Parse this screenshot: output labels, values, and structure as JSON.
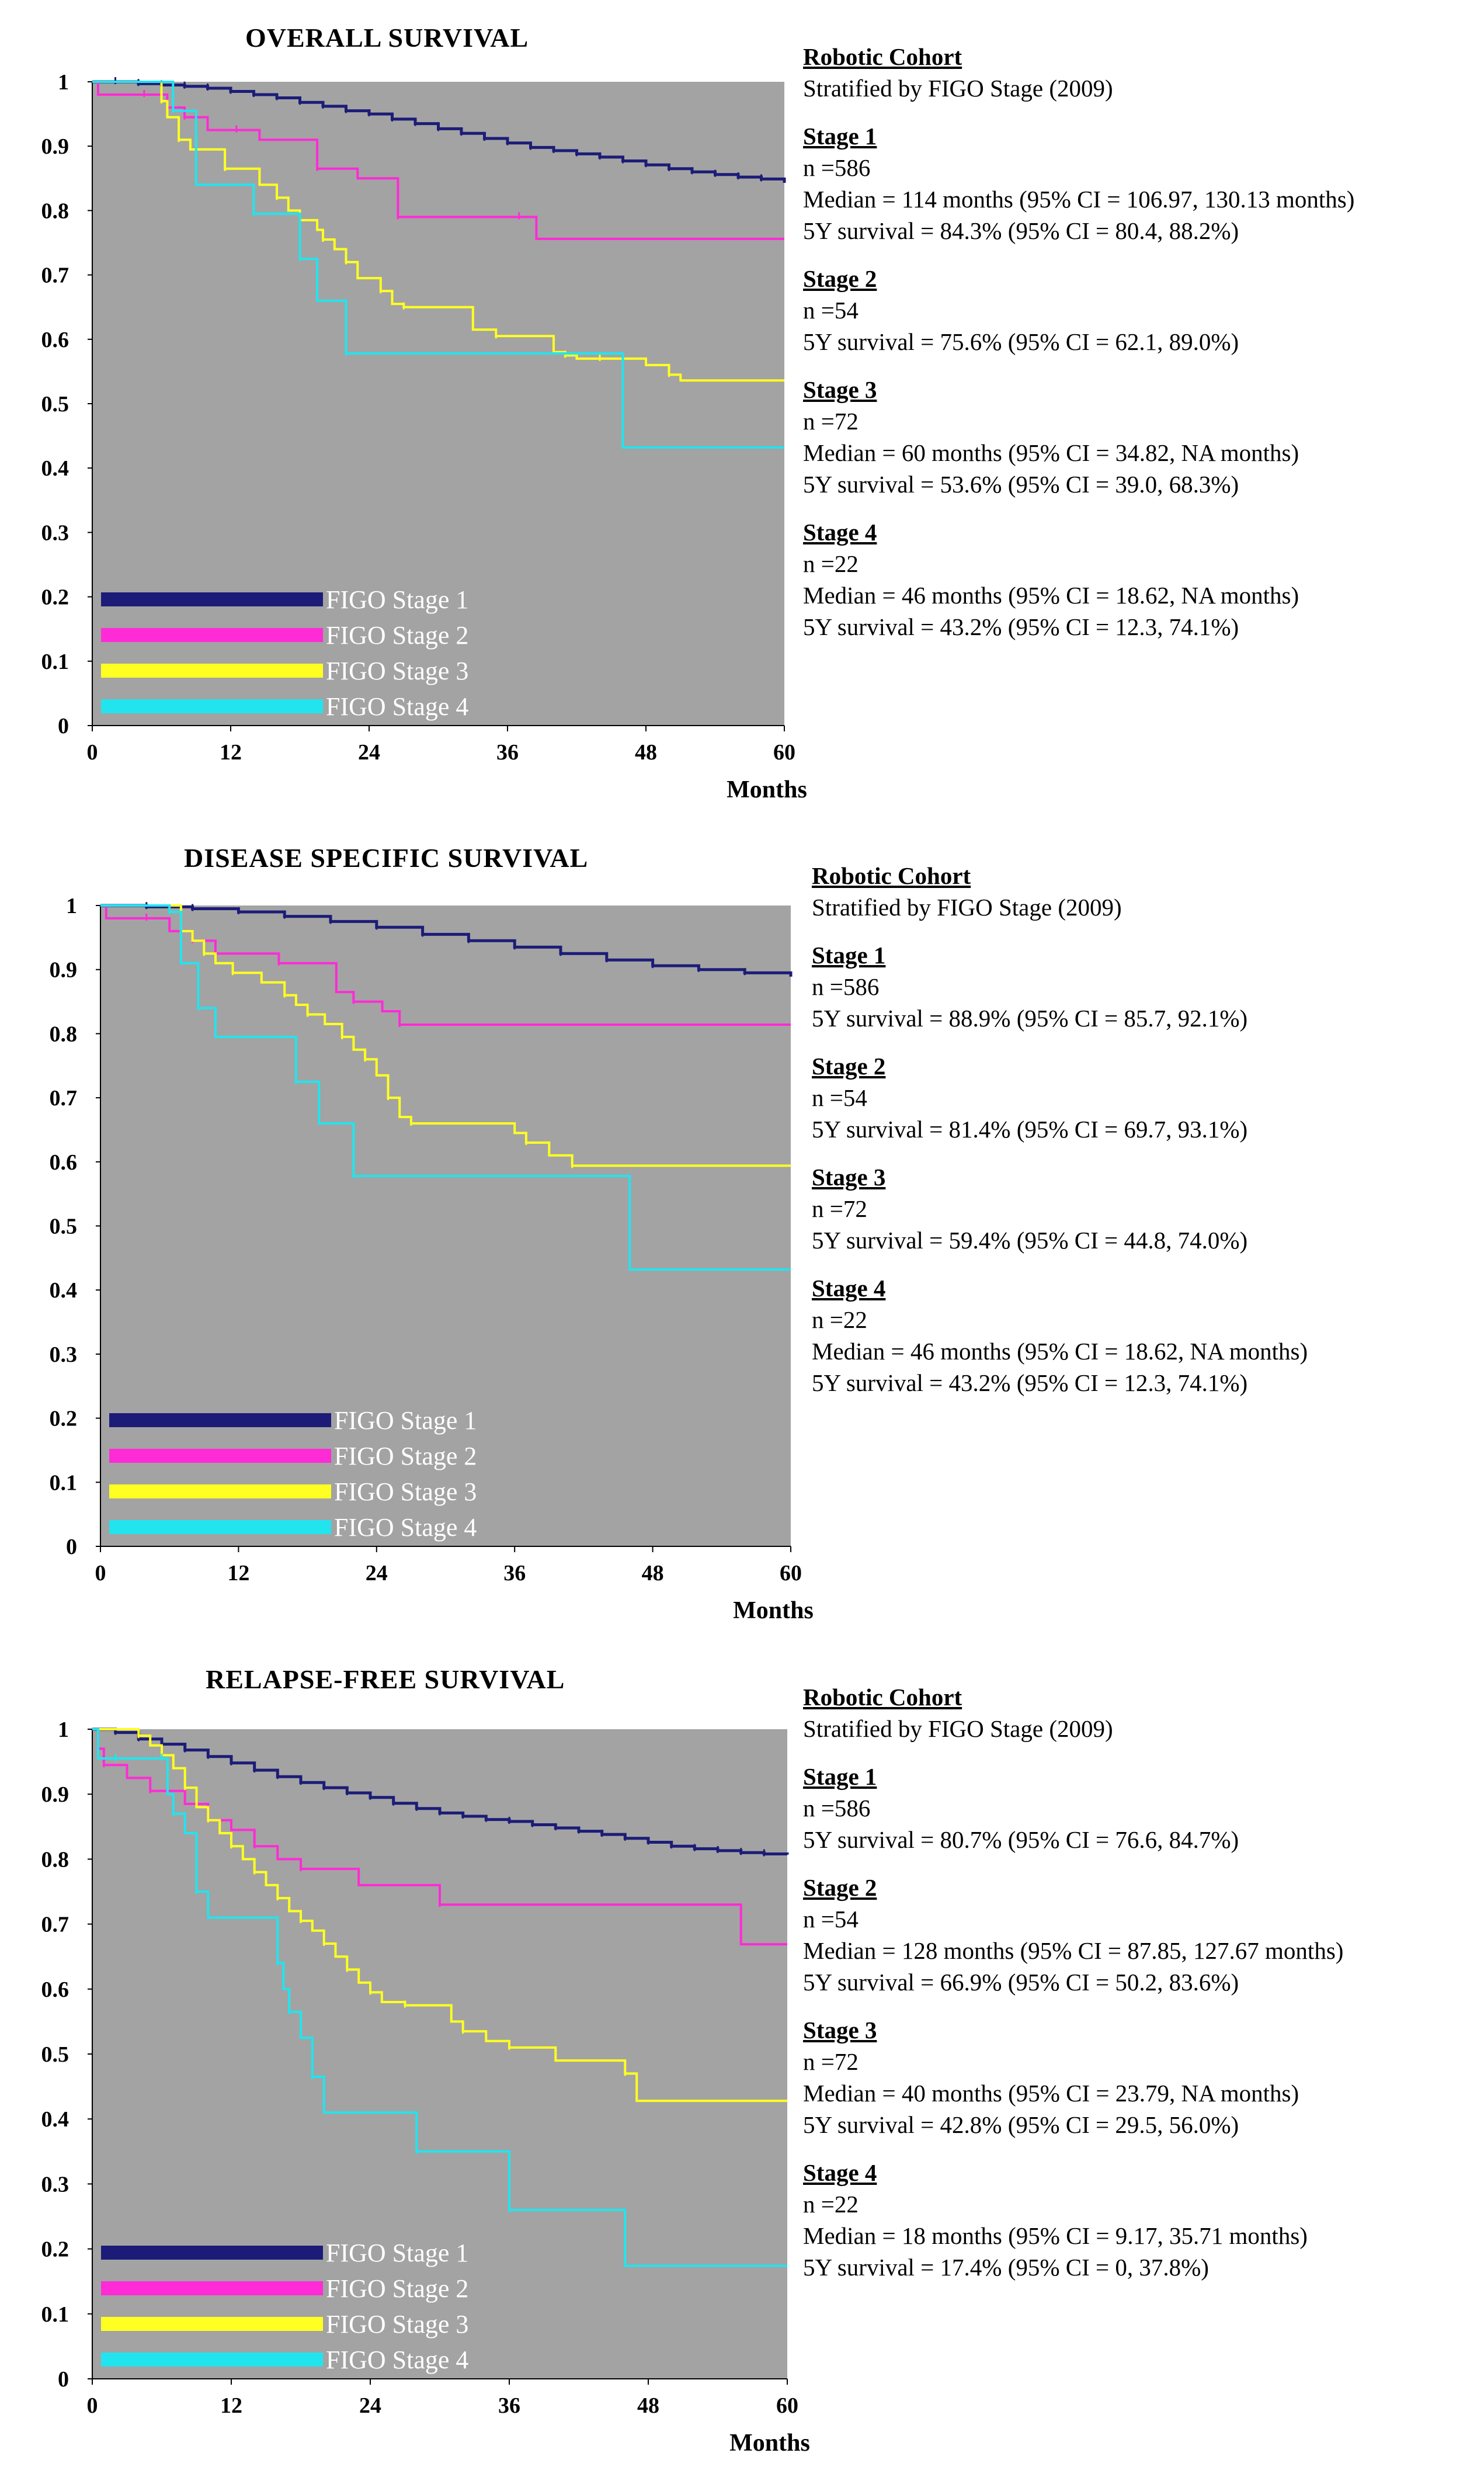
{
  "legend": [
    "FIGO Stage 1",
    "FIGO Stage 2",
    "FIGO Stage 3",
    "FIGO Stage 4"
  ],
  "colors": {
    "stage1": "#1c1c78",
    "stage2": "#ff2bd6",
    "stage3": "#ffff22",
    "stage4": "#22e4ee",
    "plot_bg": "#a3a3a3"
  },
  "panels": [
    {
      "title": "OVERALL SURVIVAL",
      "stats": {
        "cohort": "Robotic Cohort",
        "strat": "Stratified by FIGO Stage (2009)",
        "stages": [
          {
            "name": "Stage 1",
            "lines": [
              "n =586",
              "Median = 114 months (95% CI = 106.97, 130.13 months)",
              "5Y survival = 84.3% (95% CI = 80.4, 88.2%)"
            ]
          },
          {
            "name": "Stage 2",
            "lines": [
              "n =54",
              "5Y survival = 75.6% (95% CI = 62.1, 89.0%)"
            ]
          },
          {
            "name": "Stage 3",
            "lines": [
              "n =72",
              "Median = 60 months (95% CI = 34.82, NA months)",
              "5Y survival = 53.6% (95% CI = 39.0, 68.3%)"
            ]
          },
          {
            "name": "Stage 4",
            "lines": [
              "n =22",
              "Median = 46 months (95% CI = 18.62, NA months)",
              "5Y survival = 43.2% (95% CI = 12.3, 74.1%)"
            ]
          }
        ]
      }
    },
    {
      "title": "DISEASE SPECIFIC SURVIVAL",
      "stats": {
        "cohort": "Robotic Cohort",
        "strat": "Stratified by FIGO Stage (2009)",
        "stages": [
          {
            "name": "Stage 1",
            "lines": [
              "n =586",
              "5Y survival = 88.9% (95% CI = 85.7, 92.1%)"
            ]
          },
          {
            "name": "Stage 2",
            "lines": [
              "n =54",
              "5Y survival = 81.4% (95% CI = 69.7, 93.1%)"
            ]
          },
          {
            "name": "Stage 3",
            "lines": [
              "n =72",
              "5Y survival = 59.4% (95% CI = 44.8, 74.0%)"
            ]
          },
          {
            "name": "Stage 4",
            "lines": [
              "n =22",
              "Median = 46 months (95% CI = 18.62, NA months)",
              "5Y survival = 43.2% (95% CI = 12.3, 74.1%)"
            ]
          }
        ]
      }
    },
    {
      "title": "RELAPSE-FREE SURVIVAL",
      "stats": {
        "cohort": "Robotic Cohort",
        "strat": "Stratified by FIGO Stage (2009)",
        "stages": [
          {
            "name": "Stage 1",
            "lines": [
              "n =586",
              "5Y survival = 80.7% (95% CI = 76.6, 84.7%)"
            ]
          },
          {
            "name": "Stage 2",
            "lines": [
              "n =54",
              "Median = 128 months (95% CI = 87.85, 127.67 months)",
              "5Y survival = 66.9% (95% CI = 50.2, 83.6%)"
            ]
          },
          {
            "name": "Stage 3",
            "lines": [
              "n =72",
              "Median = 40 months (95% CI = 23.79, NA months)",
              "5Y survival = 42.8% (95% CI = 29.5, 56.0%)"
            ]
          },
          {
            "name": "Stage 4",
            "lines": [
              "n =22",
              "Median = 18 months (95% CI = 9.17, 35.71 months)",
              "5Y survival = 17.4% (95% CI = 0, 37.8%)"
            ]
          }
        ]
      }
    }
  ],
  "chart_data": [
    {
      "type": "line",
      "title": "OVERALL SURVIVAL",
      "xlabel": "Months",
      "ylabel": "",
      "xlim": [
        0,
        60
      ],
      "ylim": [
        0,
        1
      ],
      "xticks": [
        0,
        12,
        24,
        36,
        48,
        60
      ],
      "yticks": [
        0,
        0.1,
        0.2,
        0.3,
        0.4,
        0.5,
        0.6,
        0.7,
        0.8,
        0.9,
        1
      ],
      "step": true,
      "series": [
        {
          "name": "FIGO Stage 1",
          "x": [
            0,
            2,
            4,
            6,
            8,
            10,
            12,
            14,
            16,
            18,
            20,
            22,
            24,
            26,
            28,
            30,
            32,
            34,
            36,
            38,
            40,
            42,
            44,
            46,
            48,
            50,
            52,
            54,
            56,
            58,
            60
          ],
          "y": [
            1,
            1,
            0.997,
            0.995,
            0.993,
            0.99,
            0.985,
            0.98,
            0.975,
            0.968,
            0.962,
            0.955,
            0.95,
            0.942,
            0.935,
            0.927,
            0.92,
            0.912,
            0.905,
            0.898,
            0.893,
            0.888,
            0.883,
            0.877,
            0.871,
            0.865,
            0.86,
            0.856,
            0.852,
            0.849,
            0.843
          ]
        },
        {
          "name": "FIGO Stage 2",
          "x": [
            0,
            0.5,
            4.5,
            6.5,
            8,
            10,
            12.5,
            14.5,
            19.5,
            23,
            26.5,
            32,
            37,
            38.5,
            60
          ],
          "y": [
            1,
            0.98,
            0.98,
            0.96,
            0.945,
            0.925,
            0.925,
            0.91,
            0.865,
            0.85,
            0.79,
            0.79,
            0.79,
            0.756,
            0.756
          ]
        },
        {
          "name": "FIGO Stage 3",
          "x": [
            0,
            4.5,
            6,
            6.5,
            7.5,
            8.5,
            11.5,
            14.5,
            16,
            17,
            18,
            19.5,
            20,
            21,
            22,
            23,
            25,
            26,
            27,
            33,
            35,
            40,
            41,
            42,
            44,
            48,
            50,
            51,
            60
          ],
          "y": [
            1,
            1,
            0.97,
            0.945,
            0.91,
            0.895,
            0.865,
            0.84,
            0.82,
            0.8,
            0.785,
            0.77,
            0.755,
            0.74,
            0.72,
            0.695,
            0.675,
            0.655,
            0.65,
            0.615,
            0.605,
            0.58,
            0.575,
            0.57,
            0.57,
            0.56,
            0.545,
            0.536,
            0.536
          ]
        },
        {
          "name": "FIGO Stage 4",
          "x": [
            0,
            6,
            7,
            9,
            14,
            16,
            18,
            19.5,
            22,
            46,
            60
          ],
          "y": [
            1,
            1,
            0.955,
            0.84,
            0.795,
            0.795,
            0.725,
            0.66,
            0.578,
            0.432,
            0.432
          ]
        }
      ]
    },
    {
      "type": "line",
      "title": "DISEASE SPECIFIC SURVIVAL",
      "xlabel": "Months",
      "ylabel": "",
      "xlim": [
        0,
        60
      ],
      "ylim": [
        0,
        1
      ],
      "xticks": [
        0,
        12,
        24,
        36,
        48,
        60
      ],
      "yticks": [
        0,
        0.1,
        0.2,
        0.3,
        0.4,
        0.5,
        0.6,
        0.7,
        0.8,
        0.9,
        1
      ],
      "step": true,
      "series": [
        {
          "name": "FIGO Stage 1",
          "x": [
            0,
            4,
            8,
            12,
            16,
            20,
            24,
            28,
            32,
            36,
            40,
            44,
            48,
            52,
            56,
            60
          ],
          "y": [
            1,
            0.998,
            0.995,
            0.99,
            0.983,
            0.975,
            0.966,
            0.955,
            0.945,
            0.935,
            0.925,
            0.915,
            0.906,
            0.9,
            0.895,
            0.889
          ]
        },
        {
          "name": "FIGO Stage 2",
          "x": [
            0,
            0.5,
            4,
            6,
            8,
            10,
            15.5,
            20.5,
            22,
            24.5,
            26,
            60
          ],
          "y": [
            1,
            0.98,
            0.98,
            0.96,
            0.945,
            0.925,
            0.91,
            0.865,
            0.85,
            0.835,
            0.814,
            0.814
          ]
        },
        {
          "name": "FIGO Stage 3",
          "x": [
            0,
            6,
            7,
            8,
            9,
            10,
            11.5,
            14,
            16,
            17,
            18,
            19.5,
            21,
            22,
            23,
            24,
            25,
            26,
            27,
            36,
            37,
            39,
            41,
            60
          ],
          "y": [
            1,
            1,
            0.96,
            0.945,
            0.925,
            0.91,
            0.895,
            0.88,
            0.86,
            0.845,
            0.83,
            0.815,
            0.795,
            0.775,
            0.76,
            0.735,
            0.7,
            0.67,
            0.66,
            0.645,
            0.63,
            0.61,
            0.594,
            0.594
          ]
        },
        {
          "name": "FIGO Stage 4",
          "x": [
            0,
            5,
            6,
            7,
            8.5,
            10,
            17,
            19,
            22,
            46,
            60
          ],
          "y": [
            1,
            1,
            0.99,
            0.91,
            0.84,
            0.795,
            0.725,
            0.66,
            0.578,
            0.432,
            0.432
          ]
        }
      ]
    },
    {
      "type": "line",
      "title": "RELAPSE-FREE SURVIVAL",
      "xlabel": "Months",
      "ylabel": "",
      "xlim": [
        0,
        60
      ],
      "ylim": [
        0,
        1
      ],
      "xticks": [
        0,
        12,
        24,
        36,
        48,
        60
      ],
      "yticks": [
        0,
        0.1,
        0.2,
        0.3,
        0.4,
        0.5,
        0.6,
        0.7,
        0.8,
        0.9,
        1
      ],
      "step": true,
      "series": [
        {
          "name": "FIGO Stage 1",
          "x": [
            0,
            2,
            4,
            6,
            8,
            10,
            12,
            14,
            16,
            18,
            20,
            22,
            24,
            26,
            28,
            30,
            32,
            34,
            36,
            38,
            40,
            42,
            44,
            46,
            48,
            50,
            52,
            54,
            56,
            58,
            60
          ],
          "y": [
            1,
            0.995,
            0.985,
            0.977,
            0.968,
            0.958,
            0.948,
            0.937,
            0.927,
            0.918,
            0.91,
            0.902,
            0.895,
            0.886,
            0.878,
            0.871,
            0.866,
            0.861,
            0.858,
            0.853,
            0.848,
            0.843,
            0.838,
            0.832,
            0.826,
            0.82,
            0.816,
            0.813,
            0.81,
            0.808,
            0.807
          ]
        },
        {
          "name": "FIGO Stage 2",
          "x": [
            0,
            0.5,
            1,
            3,
            5,
            8,
            10,
            12,
            14,
            16,
            18,
            23,
            30,
            56,
            60
          ],
          "y": [
            1,
            0.97,
            0.945,
            0.925,
            0.905,
            0.885,
            0.86,
            0.845,
            0.82,
            0.8,
            0.785,
            0.76,
            0.73,
            0.669,
            0.669
          ]
        },
        {
          "name": "FIGO Stage 3",
          "x": [
            0,
            3,
            4,
            5,
            6,
            7,
            8,
            9,
            10,
            11,
            12,
            13,
            14,
            15,
            16,
            17,
            18,
            19,
            20,
            21,
            22,
            23,
            24,
            25,
            27,
            31,
            32,
            34,
            36,
            40,
            46,
            47,
            60
          ],
          "y": [
            1,
            1,
            0.99,
            0.975,
            0.96,
            0.94,
            0.91,
            0.88,
            0.86,
            0.84,
            0.82,
            0.8,
            0.78,
            0.76,
            0.74,
            0.72,
            0.705,
            0.69,
            0.67,
            0.65,
            0.63,
            0.61,
            0.595,
            0.58,
            0.575,
            0.55,
            0.535,
            0.52,
            0.51,
            0.49,
            0.47,
            0.428,
            0.428
          ]
        },
        {
          "name": "FIGO Stage 4",
          "x": [
            0,
            0.5,
            2,
            5,
            6,
            6.5,
            7,
            8,
            9,
            10,
            16,
            16.5,
            17,
            18,
            19,
            20,
            28,
            35,
            36,
            46,
            60
          ],
          "y": [
            1,
            0.955,
            0.955,
            0.955,
            0.955,
            0.9,
            0.87,
            0.84,
            0.75,
            0.71,
            0.64,
            0.6,
            0.565,
            0.525,
            0.465,
            0.41,
            0.35,
            0.35,
            0.26,
            0.174,
            0.174
          ]
        }
      ]
    }
  ]
}
